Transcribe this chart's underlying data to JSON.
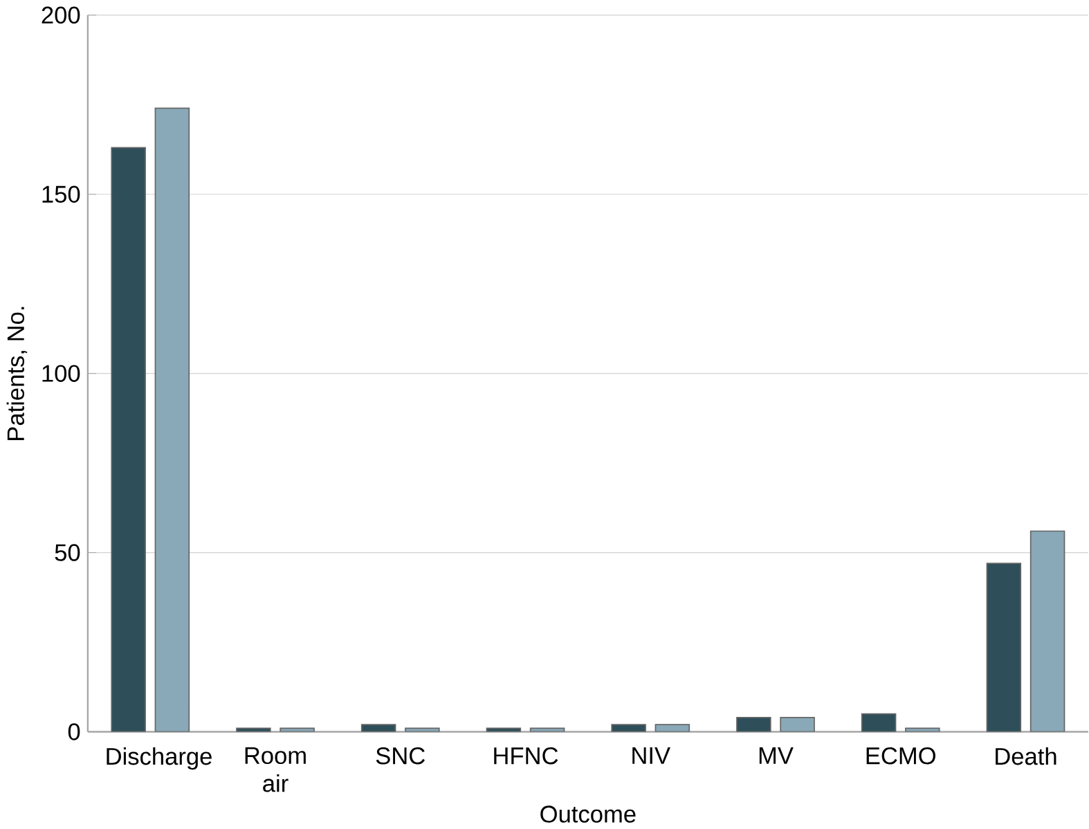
{
  "chart_data": {
    "type": "bar",
    "xlabel": "Outcome",
    "ylabel": "Patients, No.",
    "categories": [
      "Discharge",
      "Room air",
      "SNC",
      "HFNC",
      "NIV",
      "MV",
      "ECMO",
      "Death"
    ],
    "series": [
      {
        "color": "#2e4f5a",
        "values": [
          163,
          1,
          2,
          1,
          2,
          4,
          5,
          47
        ]
      },
      {
        "color": "#8aa9b8",
        "values": [
          174,
          1,
          1,
          1,
          2,
          4,
          1,
          56
        ]
      }
    ],
    "ylim": [
      0,
      200
    ],
    "yticks": [
      0,
      50,
      100,
      150,
      200
    ],
    "grid": "y"
  }
}
